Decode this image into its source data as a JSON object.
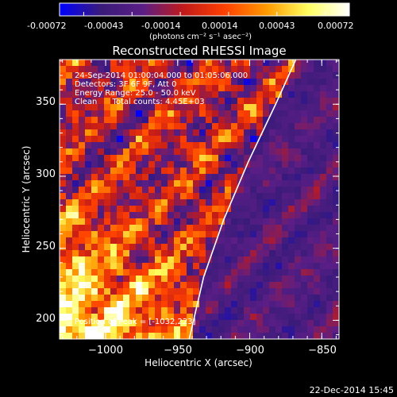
{
  "colorbar": {
    "ticks": [
      "-0.00072",
      "-0.00043",
      "-0.00014",
      "0.00014",
      "0.00043",
      "0.00072"
    ],
    "unit_label": "(photons cm⁻² s⁻¹ asec⁻²)",
    "stops": [
      "#0000ff",
      "#3a1b7a",
      "#5a1e86",
      "#c11a1a",
      "#ff4000",
      "#ff9a00",
      "#ffff60",
      "#ffffff"
    ]
  },
  "plot": {
    "title": "Reconstructed RHESSI Image",
    "info_lines": [
      "24-Sep-2014 01:00:04.000 to 01:05:06.000",
      "Detectors: 3F 6F 9F, Att 0",
      "Energy Range: 25.0 - 50.0 keV",
      "Clean      Total counts: 4.45E+03"
    ],
    "peak_label": "Position of Peak = [-1032,223]"
  },
  "footer": {
    "timestamp": "22-Dec-2014 15:45"
  },
  "chart_data": {
    "type": "heatmap",
    "title": "Reconstructed RHESSI Image",
    "xlabel": "Heliocentric X (arcsec)",
    "ylabel": "Heliocentric Y (arcsec)",
    "xlim": [
      -1032,
      -838
    ],
    "ylim": [
      187,
      381
    ],
    "x_ticks": [
      -1000,
      -950,
      -900,
      -850
    ],
    "y_ticks": [
      200,
      250,
      300,
      350
    ],
    "x_tick_labels": [
      "−1000",
      "−950",
      "−900",
      "−850"
    ],
    "y_tick_labels": [
      "200",
      "250",
      "300",
      "350"
    ],
    "limb_curve": [
      [
        -942,
        187
      ],
      [
        -932,
        230
      ],
      [
        -918,
        270
      ],
      [
        -901,
        310
      ],
      [
        -882,
        350
      ],
      [
        -868,
        381
      ]
    ],
    "zlim": [
      -0.00072,
      0.00072
    ],
    "peak": [
      -1032,
      223
    ]
  }
}
